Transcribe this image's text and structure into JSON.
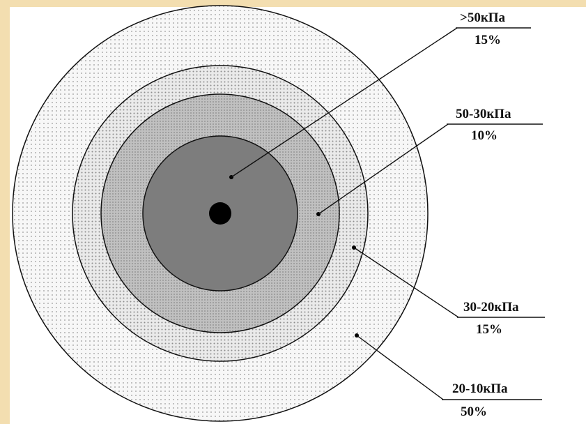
{
  "zones": [
    {
      "pressure": ">50кПа",
      "percent": "15%"
    },
    {
      "pressure": "50-30кПа",
      "percent": "10%"
    },
    {
      "pressure": "30-20кПа",
      "percent": "15%"
    },
    {
      "pressure": "20-10кПа",
      "percent": "50%"
    }
  ],
  "colors": {
    "background_frame": "#f3deb0",
    "panel": "#ffffff",
    "ring_outer": "#f6f6f6",
    "ring_middle": "#e6e6e6",
    "ring_inner": "#bcbcbc",
    "core": "#7d7d7d",
    "center_dot": "#000000",
    "lines": "#111111"
  }
}
